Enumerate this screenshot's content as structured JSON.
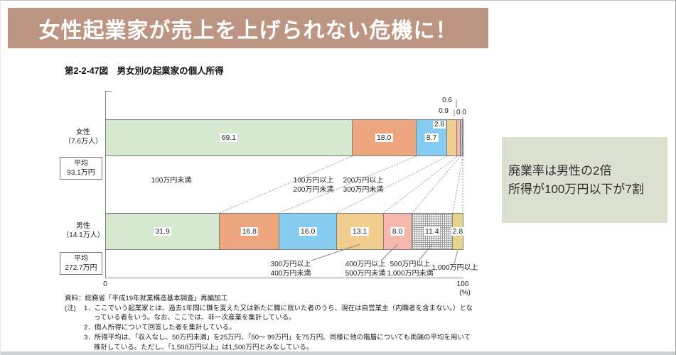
{
  "banner": {
    "title": "女性起業家が売上を上げられない危機に！",
    "bg": "#bc9583"
  },
  "figure": {
    "title": "第2-2-47図　男女別の起業家の個人所得"
  },
  "chart_data": {
    "type": "bar",
    "subtype": "horizontal-stacked-percentage",
    "unit": "%",
    "xlim": [
      0,
      100
    ],
    "x_ticks": [
      "0",
      "100"
    ],
    "x_unit": "(%)",
    "categories": [
      "100万円未満",
      "100万円以上200万円未満",
      "200万円以上300万円未満",
      "300万円以上400万円未満",
      "400万円以上500万円未満",
      "500万円以上1,000万円未満",
      "1,000万円以上"
    ],
    "series": [
      {
        "name": "女性",
        "count": "（7.6万人）",
        "avg_line1": "平均",
        "avg_line2": "93.1万円",
        "values": [
          "69.1",
          "18.0",
          "8.7",
          "2.8",
          "0.9",
          "0.6",
          "0.0"
        ]
      },
      {
        "name": "男性",
        "count": "（14.1万人）",
        "avg_line1": "平均",
        "avg_line2": "272.7万円",
        "values": [
          "31.9",
          "16.8",
          "16.0",
          "13.1",
          "8.0",
          "11.4",
          "2.8"
        ]
      }
    ],
    "colors": [
      "#d6e8d0",
      "#eda67e",
      "#85ccf0",
      "#f1cd8e",
      "#f5b8ae",
      "hatch",
      "#e5d58c"
    ],
    "grid": false,
    "legend": "category labels drawn between and below bars"
  },
  "labels": {
    "under100": "100万円未満",
    "l100_200": [
      "100万円以上",
      "200万円未満"
    ],
    "l200_300": [
      "200万円以上",
      "300万円未満"
    ],
    "l300_400": [
      "300万円以上",
      "400万円未満"
    ],
    "l400_500": [
      "400万円以上",
      "500万円未満"
    ],
    "l500_1000": [
      "500万円以上",
      "1,000万円未満"
    ],
    "over1000": "1,000万円以上"
  },
  "axis": {
    "x0": "0",
    "x100": "100",
    "unit": "(%)"
  },
  "callout": {
    "bg": "#dce0d0",
    "line1": "廃業率は男性の2倍",
    "line2": "所得が100万円以下が7割"
  },
  "footnotes": {
    "source": "資料：総務省「平成19年就業構造基本調査」再編加工",
    "note_label": "(注)",
    "items": [
      "1．ここでいう起業家とは、過去1年間に職を変えた又は新たに職に就いた者のうち、現在は自営業主（内職者を含まない。）となっている者をいう。なお、ここでは、非一次産業を集計している。",
      "2．個人所得について回答した者を集計している。",
      "3．所得平均は、「収入なし、50万円未満」を25万円、「50～ 99万円」を75万円、同様に他の階層についても両端の平均を用いて推計している。ただし、「1,500万円以上」は1,500万円とみなしている。"
    ]
  }
}
